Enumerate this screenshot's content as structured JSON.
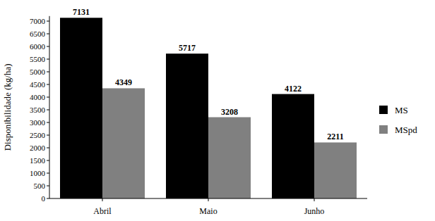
{
  "chart_data": {
    "type": "bar",
    "y_label": "Disponibilidade (kg/ha)",
    "categories": [
      "Abril",
      "Maio",
      "Junho"
    ],
    "series": [
      {
        "name": "MS",
        "color": "#000000",
        "values": [
          7131,
          5717,
          4122
        ]
      },
      {
        "name": "MSpd",
        "color": "#808080",
        "values": [
          4349,
          3208,
          2211
        ]
      }
    ],
    "ylim": [
      0,
      7200
    ],
    "yticks": [
      0,
      500,
      1000,
      1500,
      2000,
      2500,
      3000,
      3500,
      4000,
      4500,
      5000,
      5500,
      6000,
      6500,
      7000
    ],
    "grid": false,
    "legend": "right",
    "data_labels": true
  }
}
